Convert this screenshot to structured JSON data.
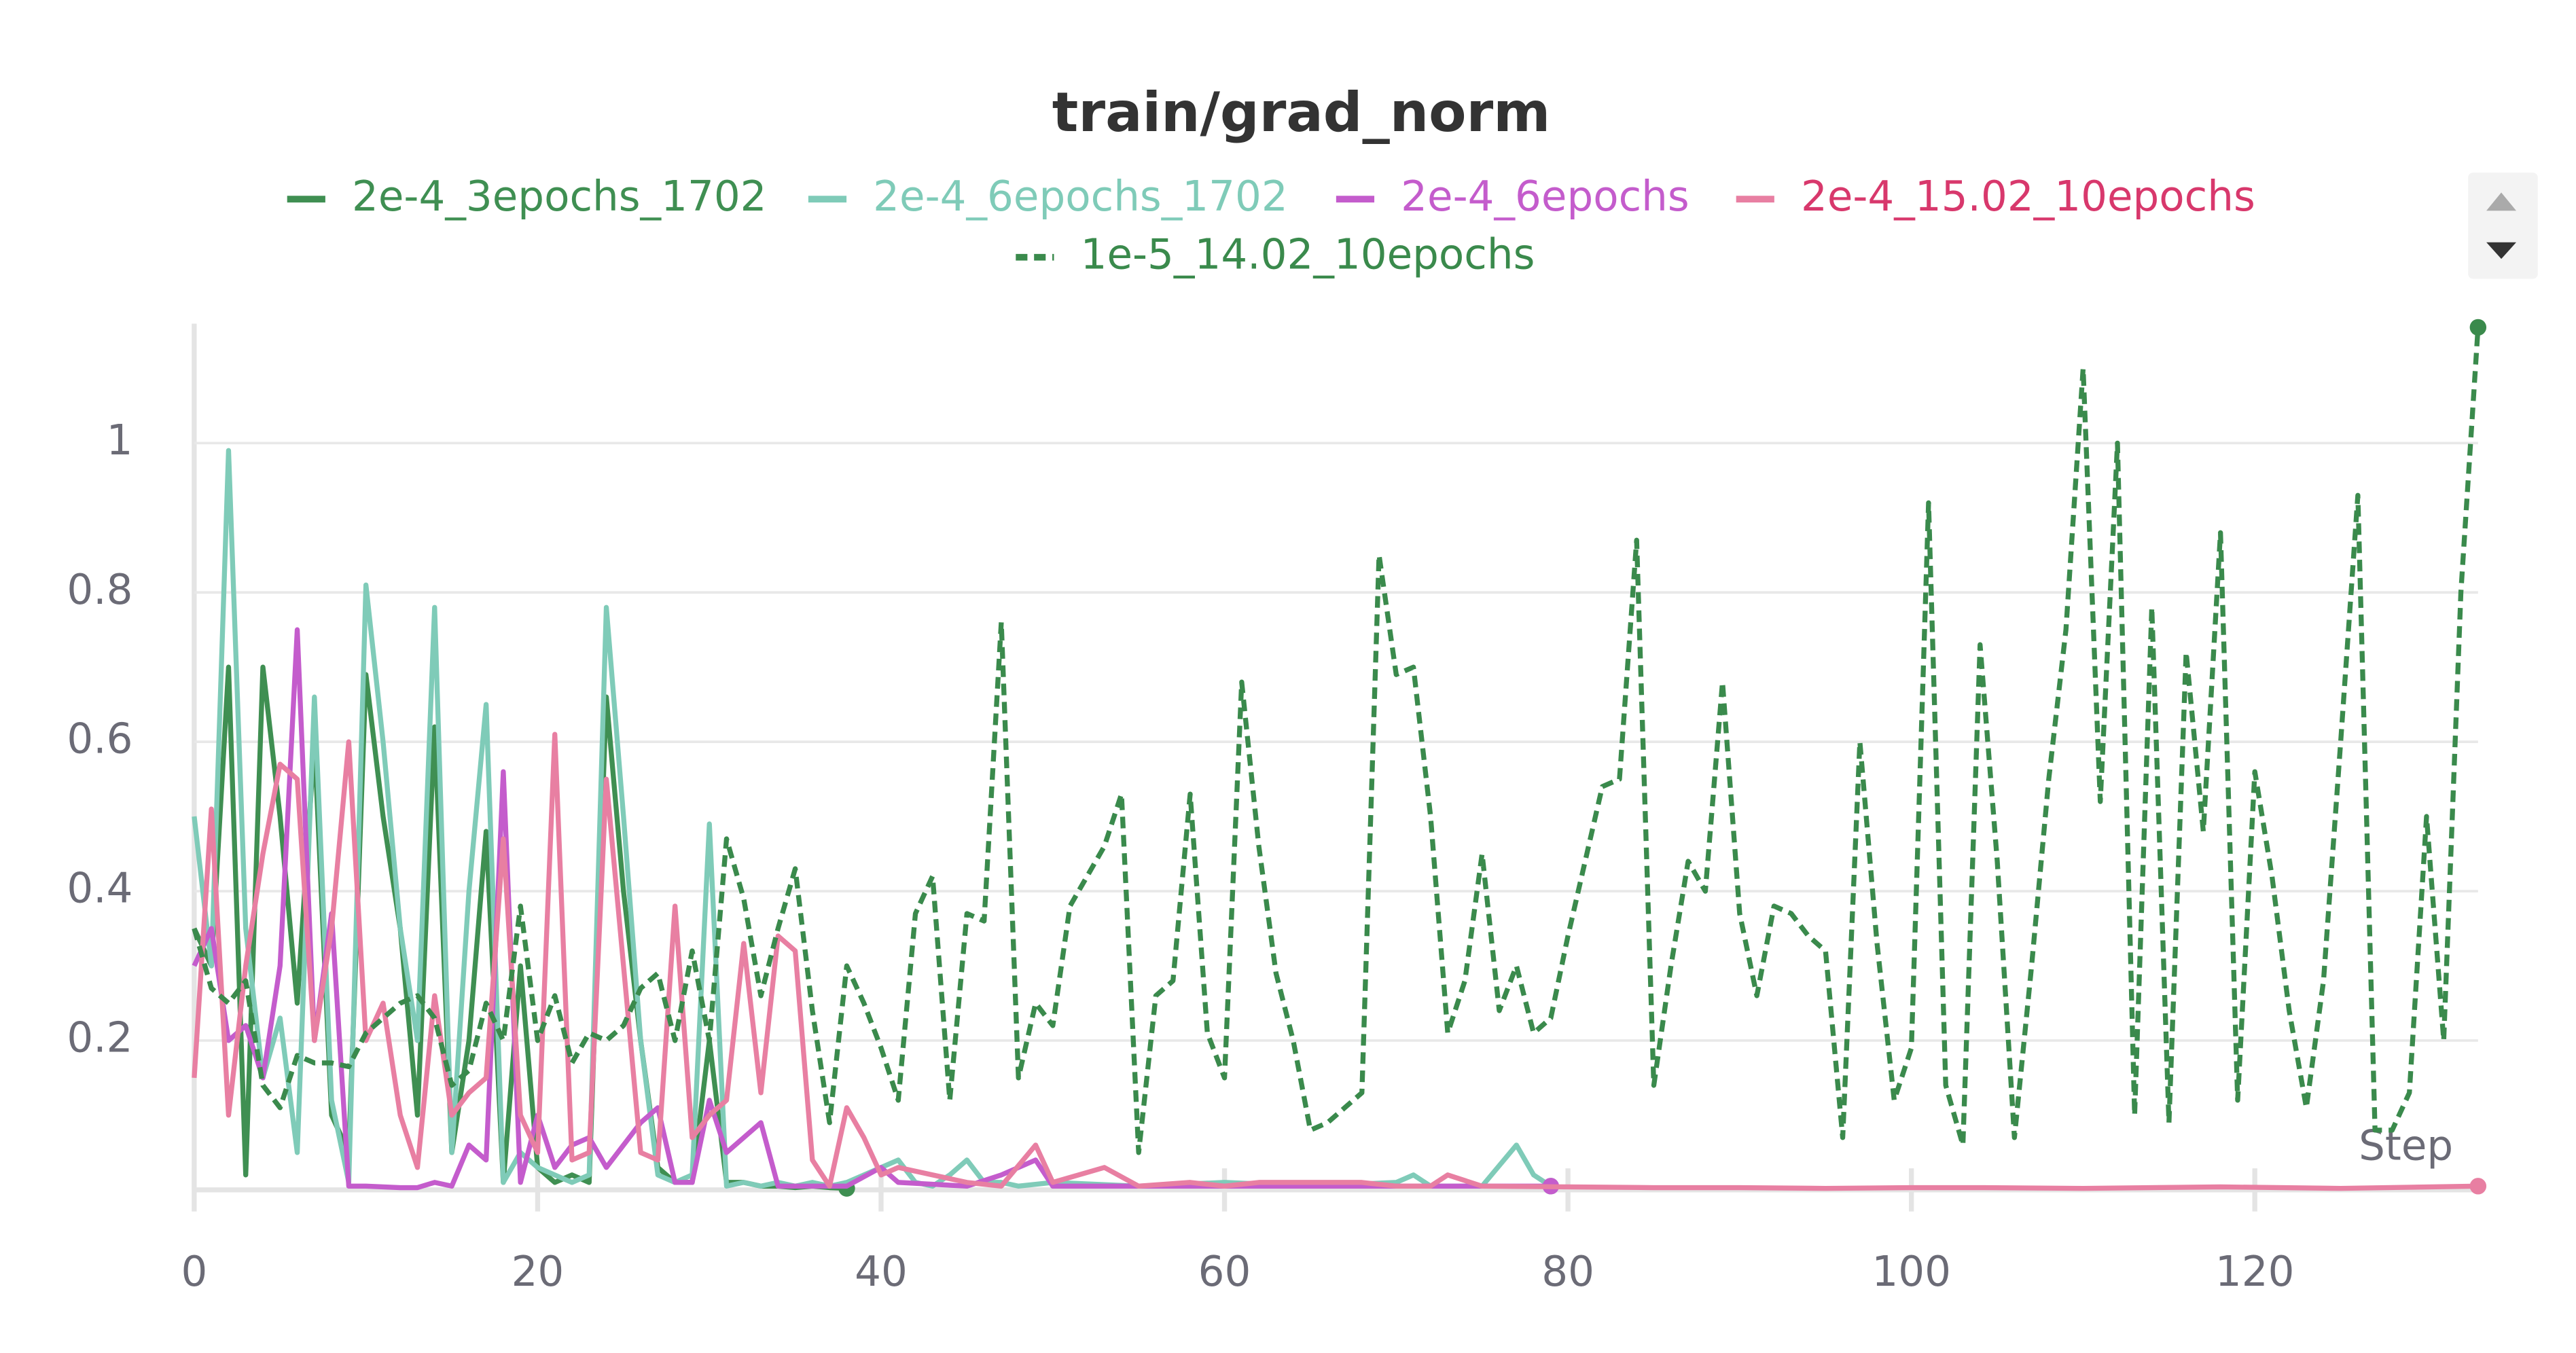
{
  "chart_data": {
    "type": "line",
    "title": "train/grad_norm",
    "x_label": "Step",
    "xlim": [
      0,
      133
    ],
    "ylim": [
      0,
      1.16
    ],
    "xticks": [
      0,
      20,
      40,
      60,
      80,
      100,
      120
    ],
    "yticks": [
      0.2,
      0.4,
      0.6,
      0.8,
      1
    ],
    "grid": true,
    "legend": "top",
    "series": [
      {
        "name": "2e-4_3epochs_1702",
        "color": "#3f8f52",
        "line_style": "solid",
        "x": [
          0,
          1,
          2,
          3,
          4,
          5,
          6,
          7,
          8,
          9,
          10,
          11,
          12,
          13,
          14,
          15,
          16,
          17,
          18,
          19,
          20,
          21,
          22,
          23,
          24,
          25,
          26,
          27,
          28,
          29,
          30,
          31,
          32,
          33,
          34,
          35,
          36,
          37,
          38
        ],
        "values": [
          0.35,
          0.3,
          0.7,
          0.02,
          0.7,
          0.5,
          0.25,
          0.6,
          0.1,
          0.05,
          0.69,
          0.5,
          0.35,
          0.1,
          0.62,
          0.05,
          0.2,
          0.48,
          0.01,
          0.3,
          0.03,
          0.01,
          0.02,
          0.01,
          0.66,
          0.4,
          0.2,
          0.03,
          0.01,
          0.01,
          0.2,
          0.01,
          0.01,
          0.005,
          0.005,
          0.003,
          0.005,
          0.003,
          0.002
        ]
      },
      {
        "name": "2e-4_6epochs_1702",
        "color": "#7fcbb8",
        "line_style": "solid",
        "x": [
          0,
          1,
          2,
          3,
          4,
          5,
          6,
          7,
          8,
          9,
          10,
          11,
          12,
          13,
          14,
          15,
          16,
          17,
          18,
          19,
          20,
          21,
          22,
          23,
          24,
          25,
          26,
          27,
          28,
          29,
          30,
          31,
          32,
          33,
          34,
          35,
          36,
          37,
          38,
          39,
          40,
          41,
          42,
          43,
          44,
          45,
          46,
          47,
          48,
          50,
          55,
          60,
          65,
          70,
          71,
          72,
          75,
          77,
          78,
          79
        ],
        "values": [
          0.5,
          0.3,
          0.99,
          0.35,
          0.15,
          0.23,
          0.05,
          0.66,
          0.12,
          0.01,
          0.81,
          0.6,
          0.35,
          0.2,
          0.78,
          0.05,
          0.4,
          0.65,
          0.01,
          0.05,
          0.03,
          0.02,
          0.01,
          0.02,
          0.78,
          0.5,
          0.2,
          0.02,
          0.01,
          0.02,
          0.49,
          0.005,
          0.01,
          0.005,
          0.01,
          0.005,
          0.01,
          0.005,
          0.01,
          0.02,
          0.03,
          0.04,
          0.01,
          0.005,
          0.02,
          0.04,
          0.01,
          0.01,
          0.005,
          0.01,
          0.005,
          0.01,
          0.005,
          0.01,
          0.02,
          0.005,
          0.005,
          0.06,
          0.02,
          0.005
        ]
      },
      {
        "name": "2e-4_6epochs",
        "color": "#c45ccc",
        "line_style": "solid",
        "x": [
          0,
          1,
          2,
          3,
          4,
          5,
          6,
          7,
          8,
          9,
          10,
          11,
          12,
          13,
          14,
          15,
          16,
          17,
          18,
          19,
          20,
          21,
          22,
          23,
          24,
          25,
          26,
          27,
          28,
          29,
          30,
          31,
          32,
          33,
          34,
          38,
          40,
          41,
          45,
          47,
          49,
          50,
          55,
          60,
          65,
          70,
          75,
          79
        ],
        "values": [
          0.3,
          0.35,
          0.2,
          0.22,
          0.15,
          0.3,
          0.75,
          0.2,
          0.37,
          0.005,
          0.005,
          0.004,
          0.003,
          0.003,
          0.01,
          0.005,
          0.06,
          0.04,
          0.56,
          0.01,
          0.1,
          0.03,
          0.06,
          0.07,
          0.03,
          0.06,
          0.09,
          0.11,
          0.01,
          0.01,
          0.12,
          0.05,
          0.07,
          0.09,
          0.005,
          0.005,
          0.03,
          0.01,
          0.005,
          0.02,
          0.04,
          0.005,
          0.005,
          0.005,
          0.005,
          0.005,
          0.005,
          0.005
        ]
      },
      {
        "name": "2e-4_15.02_10epochs",
        "color": "#e87fa2",
        "text_color": "#d8386c",
        "line_style": "solid",
        "x": [
          0,
          1,
          2,
          3,
          4,
          5,
          6,
          7,
          8,
          9,
          10,
          11,
          12,
          13,
          14,
          15,
          16,
          17,
          18,
          19,
          20,
          21,
          22,
          23,
          24,
          25,
          26,
          27,
          28,
          29,
          30,
          31,
          32,
          33,
          34,
          35,
          36,
          37,
          38,
          39,
          40,
          41,
          45,
          47,
          49,
          50,
          53,
          55,
          58,
          60,
          62,
          65,
          68,
          70,
          72,
          73,
          75,
          80,
          85,
          90,
          95,
          100,
          104,
          110,
          118,
          125,
          133
        ],
        "values": [
          0.15,
          0.51,
          0.1,
          0.3,
          0.45,
          0.57,
          0.55,
          0.2,
          0.35,
          0.6,
          0.2,
          0.25,
          0.1,
          0.03,
          0.26,
          0.1,
          0.13,
          0.15,
          0.47,
          0.1,
          0.05,
          0.61,
          0.04,
          0.05,
          0.55,
          0.3,
          0.05,
          0.04,
          0.38,
          0.07,
          0.1,
          0.12,
          0.33,
          0.13,
          0.34,
          0.32,
          0.04,
          0.005,
          0.11,
          0.07,
          0.02,
          0.03,
          0.01,
          0.005,
          0.06,
          0.01,
          0.03,
          0.005,
          0.01,
          0.005,
          0.01,
          0.01,
          0.01,
          0.005,
          0.005,
          0.02,
          0.005,
          0.004,
          0.003,
          0.003,
          0.002,
          0.003,
          0.003,
          0.002,
          0.004,
          0.002,
          0.005
        ]
      },
      {
        "name": "1e-5_14.02_10epochs",
        "color": "#3a8a4c",
        "line_style": "dashed",
        "x": [
          0,
          1,
          2,
          3,
          4,
          5,
          6,
          7,
          8,
          9,
          10,
          11,
          12,
          13,
          14,
          15,
          16,
          17,
          18,
          19,
          20,
          21,
          22,
          23,
          24,
          25,
          26,
          27,
          28,
          29,
          30,
          31,
          32,
          33,
          34,
          35,
          36,
          37,
          38,
          39,
          40,
          41,
          42,
          43,
          44,
          45,
          46,
          47,
          48,
          49,
          50,
          51,
          52,
          53,
          54,
          55,
          56,
          57,
          58,
          59,
          60,
          61,
          62,
          63,
          64,
          65,
          66,
          67,
          68,
          69,
          70,
          71,
          72,
          73,
          74,
          75,
          76,
          77,
          78,
          79,
          80,
          81,
          82,
          83,
          84,
          85,
          86,
          87,
          88,
          89,
          90,
          91,
          92,
          93,
          94,
          95,
          96,
          97,
          98,
          99,
          100,
          101,
          102,
          103,
          104,
          105,
          106,
          107,
          108,
          109,
          110,
          111,
          112,
          113,
          114,
          115,
          116,
          117,
          118,
          119,
          120,
          121,
          122,
          123,
          124,
          125,
          126,
          127,
          128,
          129,
          130,
          131,
          132,
          133
        ],
        "values": [
          0.35,
          0.27,
          0.25,
          0.28,
          0.14,
          0.11,
          0.18,
          0.17,
          0.17,
          0.165,
          0.21,
          0.23,
          0.25,
          0.26,
          0.23,
          0.14,
          0.16,
          0.25,
          0.2,
          0.38,
          0.2,
          0.26,
          0.17,
          0.21,
          0.2,
          0.22,
          0.27,
          0.29,
          0.2,
          0.32,
          0.2,
          0.47,
          0.39,
          0.26,
          0.35,
          0.43,
          0.24,
          0.09,
          0.3,
          0.25,
          0.19,
          0.12,
          0.37,
          0.42,
          0.12,
          0.37,
          0.36,
          0.76,
          0.15,
          0.25,
          0.22,
          0.38,
          0.42,
          0.46,
          0.53,
          0.05,
          0.26,
          0.28,
          0.53,
          0.21,
          0.15,
          0.68,
          0.46,
          0.29,
          0.2,
          0.08,
          0.09,
          0.11,
          0.13,
          0.85,
          0.69,
          0.7,
          0.5,
          0.21,
          0.28,
          0.45,
          0.24,
          0.3,
          0.21,
          0.23,
          0.34,
          0.44,
          0.54,
          0.55,
          0.87,
          0.14,
          0.3,
          0.44,
          0.4,
          0.68,
          0.37,
          0.26,
          0.38,
          0.37,
          0.34,
          0.32,
          0.07,
          0.6,
          0.33,
          0.12,
          0.19,
          0.92,
          0.14,
          0.06,
          0.73,
          0.44,
          0.07,
          0.3,
          0.55,
          0.75,
          1.1,
          0.52,
          1.0,
          0.1,
          0.78,
          0.09,
          0.72,
          0.48,
          0.88,
          0.12,
          0.56,
          0.42,
          0.24,
          0.11,
          0.28,
          0.6,
          0.93,
          0.08,
          0.08,
          0.13,
          0.5,
          0.2,
          0.8,
          1.155
        ]
      }
    ]
  }
}
